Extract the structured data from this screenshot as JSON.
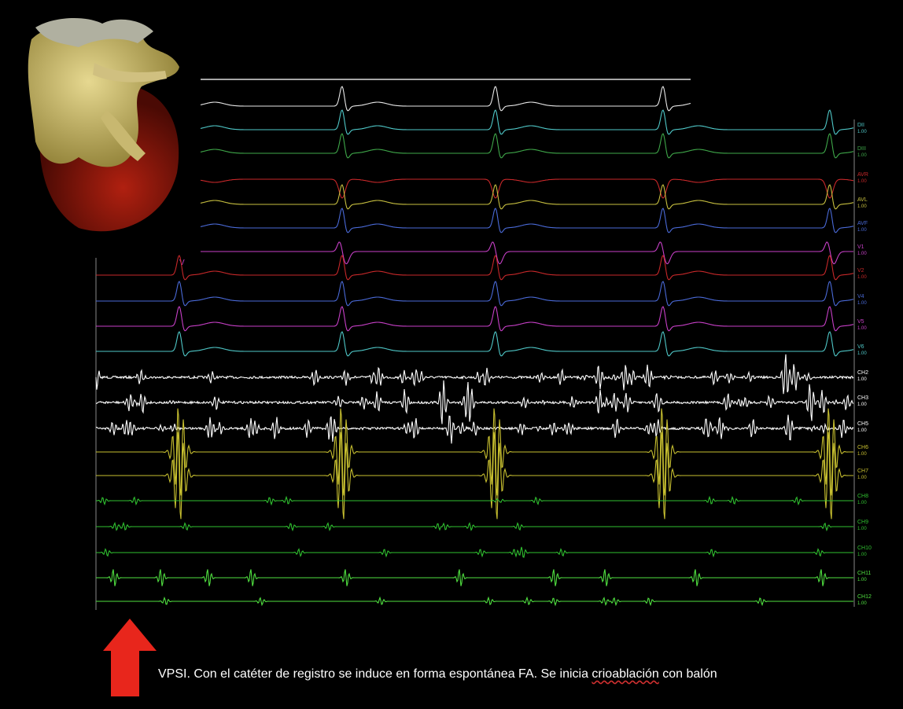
{
  "marker": "V",
  "channels": [
    {
      "label": "DII",
      "gain": "1.00",
      "color": "#4fc8c8"
    },
    {
      "label": "DIII",
      "gain": "1.00",
      "color": "#3fa84a"
    },
    {
      "label": "AVR",
      "gain": "1.00",
      "color": "#c8282a"
    },
    {
      "label": "AVL",
      "gain": "1.00",
      "color": "#c8c040"
    },
    {
      "label": "AVF",
      "gain": "1.00",
      "color": "#4a6ad8"
    },
    {
      "label": "V1",
      "gain": "1.00",
      "color": "#c840c8"
    },
    {
      "label": "V2",
      "gain": "1.00",
      "color": "#c8282a"
    },
    {
      "label": "V4",
      "gain": "1.00",
      "color": "#4a6ad8"
    },
    {
      "label": "V5",
      "gain": "1.00",
      "color": "#c840c8"
    },
    {
      "label": "V6",
      "gain": "1.00",
      "color": "#4fc8c8"
    },
    {
      "label": "CH2",
      "gain": "1.00",
      "color": "#ffffff"
    },
    {
      "label": "CH3",
      "gain": "1.00",
      "color": "#ffffff"
    },
    {
      "label": "CH5",
      "gain": "1.00",
      "color": "#ffffff"
    },
    {
      "label": "CH6",
      "gain": "1.00",
      "color": "#c8c030"
    },
    {
      "label": "CH7",
      "gain": "1.00",
      "color": "#c8c030"
    },
    {
      "label": "CH8",
      "gain": "1.00",
      "color": "#30c030"
    },
    {
      "label": "CH9",
      "gain": "1.00",
      "color": "#30c030"
    },
    {
      "label": "CH10",
      "gain": "1.00",
      "color": "#30c030"
    },
    {
      "label": "CH11",
      "gain": "1.00",
      "color": "#50e040"
    },
    {
      "label": "CH12",
      "gain": "1.00",
      "color": "#50e040"
    }
  ],
  "caption": {
    "before": "VPSI. Con el catéter de registro se induce en forma espontánea FA. Se inicia ",
    "underlined": "crioablación",
    "after": " con balón"
  }
}
